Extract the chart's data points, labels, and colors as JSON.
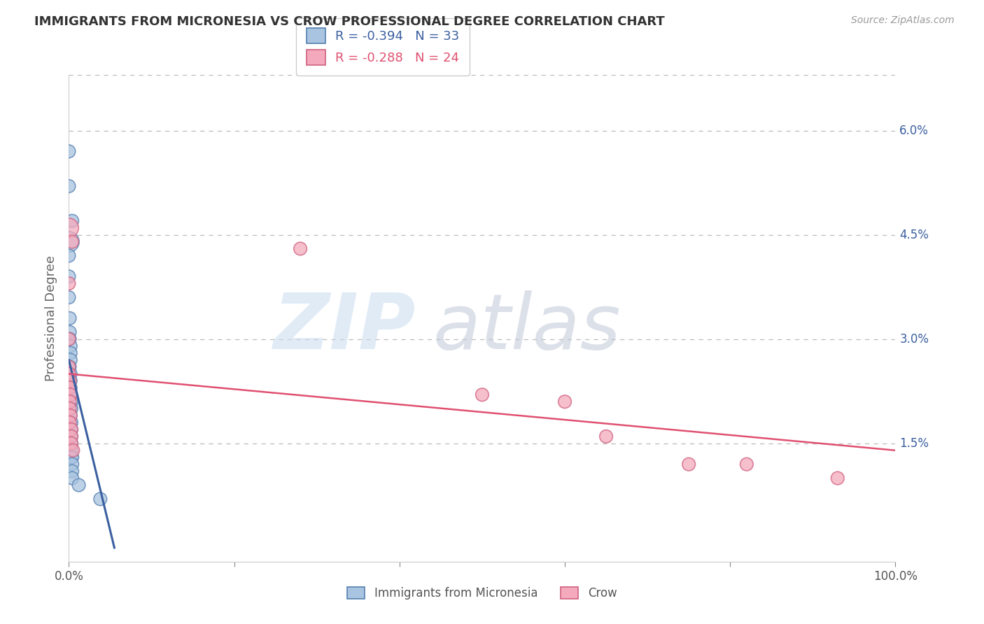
{
  "title": "IMMIGRANTS FROM MICRONESIA VS CROW PROFESSIONAL DEGREE CORRELATION CHART",
  "source": "Source: ZipAtlas.com",
  "ylabel": "Professional Degree",
  "ytick_labels": [
    "1.5%",
    "3.0%",
    "4.5%",
    "6.0%"
  ],
  "ytick_values": [
    0.015,
    0.03,
    0.045,
    0.06
  ],
  "xlim": [
    0.0,
    1.0
  ],
  "ylim": [
    -0.002,
    0.068
  ],
  "legend_r1": "-0.394",
  "legend_n1": "33",
  "legend_r2": "-0.288",
  "legend_n2": "24",
  "blue_fill": "#A8C4E0",
  "blue_edge": "#5580B0",
  "pink_fill": "#F4AABC",
  "pink_edge": "#D06080",
  "blue_line_color": "#3B5FA0",
  "pink_line_color": "#E05070",
  "blue_scatter": [
    [
      0.0,
      0.057
    ],
    [
      0.0,
      0.052
    ],
    [
      0.004,
      0.047
    ],
    [
      0.0,
      0.044
    ],
    [
      0.0,
      0.042
    ],
    [
      0.0,
      0.039
    ],
    [
      0.0,
      0.036
    ],
    [
      0.001,
      0.033
    ],
    [
      0.001,
      0.031
    ],
    [
      0.001,
      0.03
    ],
    [
      0.002,
      0.029
    ],
    [
      0.002,
      0.028
    ],
    [
      0.002,
      0.027
    ],
    [
      0.001,
      0.026
    ],
    [
      0.002,
      0.025
    ],
    [
      0.002,
      0.024
    ],
    [
      0.002,
      0.023
    ],
    [
      0.001,
      0.022
    ],
    [
      0.003,
      0.021
    ],
    [
      0.003,
      0.02
    ],
    [
      0.002,
      0.019
    ],
    [
      0.003,
      0.018
    ],
    [
      0.003,
      0.017
    ],
    [
      0.003,
      0.016
    ],
    [
      0.003,
      0.015
    ],
    [
      0.003,
      0.014
    ],
    [
      0.003,
      0.013
    ],
    [
      0.004,
      0.013
    ],
    [
      0.004,
      0.012
    ],
    [
      0.004,
      0.011
    ],
    [
      0.004,
      0.01
    ],
    [
      0.012,
      0.009
    ],
    [
      0.038,
      0.007
    ]
  ],
  "blue_sizes": [
    180,
    180,
    180,
    450,
    180,
    180,
    180,
    180,
    180,
    180,
    180,
    180,
    180,
    180,
    180,
    180,
    180,
    180,
    180,
    180,
    180,
    180,
    180,
    180,
    180,
    180,
    180,
    180,
    180,
    180,
    180,
    180,
    180
  ],
  "pink_scatter": [
    [
      0.0,
      0.046
    ],
    [
      0.004,
      0.044
    ],
    [
      0.0,
      0.038
    ],
    [
      0.0,
      0.03
    ],
    [
      0.0,
      0.026
    ],
    [
      0.0,
      0.025
    ],
    [
      0.001,
      0.024
    ],
    [
      0.001,
      0.023
    ],
    [
      0.002,
      0.022
    ],
    [
      0.001,
      0.021
    ],
    [
      0.001,
      0.02
    ],
    [
      0.002,
      0.019
    ],
    [
      0.001,
      0.018
    ],
    [
      0.003,
      0.017
    ],
    [
      0.003,
      0.016
    ],
    [
      0.003,
      0.015
    ],
    [
      0.005,
      0.014
    ],
    [
      0.28,
      0.043
    ],
    [
      0.5,
      0.022
    ],
    [
      0.6,
      0.021
    ],
    [
      0.65,
      0.016
    ],
    [
      0.75,
      0.012
    ],
    [
      0.82,
      0.012
    ],
    [
      0.93,
      0.01
    ]
  ],
  "pink_sizes": [
    400,
    180,
    180,
    180,
    180,
    180,
    180,
    180,
    180,
    180,
    180,
    180,
    180,
    180,
    180,
    180,
    180,
    180,
    180,
    180,
    180,
    180,
    180,
    180
  ],
  "blue_line": [
    [
      0.0,
      0.027
    ],
    [
      0.055,
      0.0
    ]
  ],
  "pink_line": [
    [
      0.0,
      0.025
    ],
    [
      1.0,
      0.014
    ]
  ],
  "watermark_zip": "ZIP",
  "watermark_atlas": "atlas",
  "background_color": "#FFFFFF",
  "grid_color": "#BBBBBB",
  "tick_color": "#888888"
}
